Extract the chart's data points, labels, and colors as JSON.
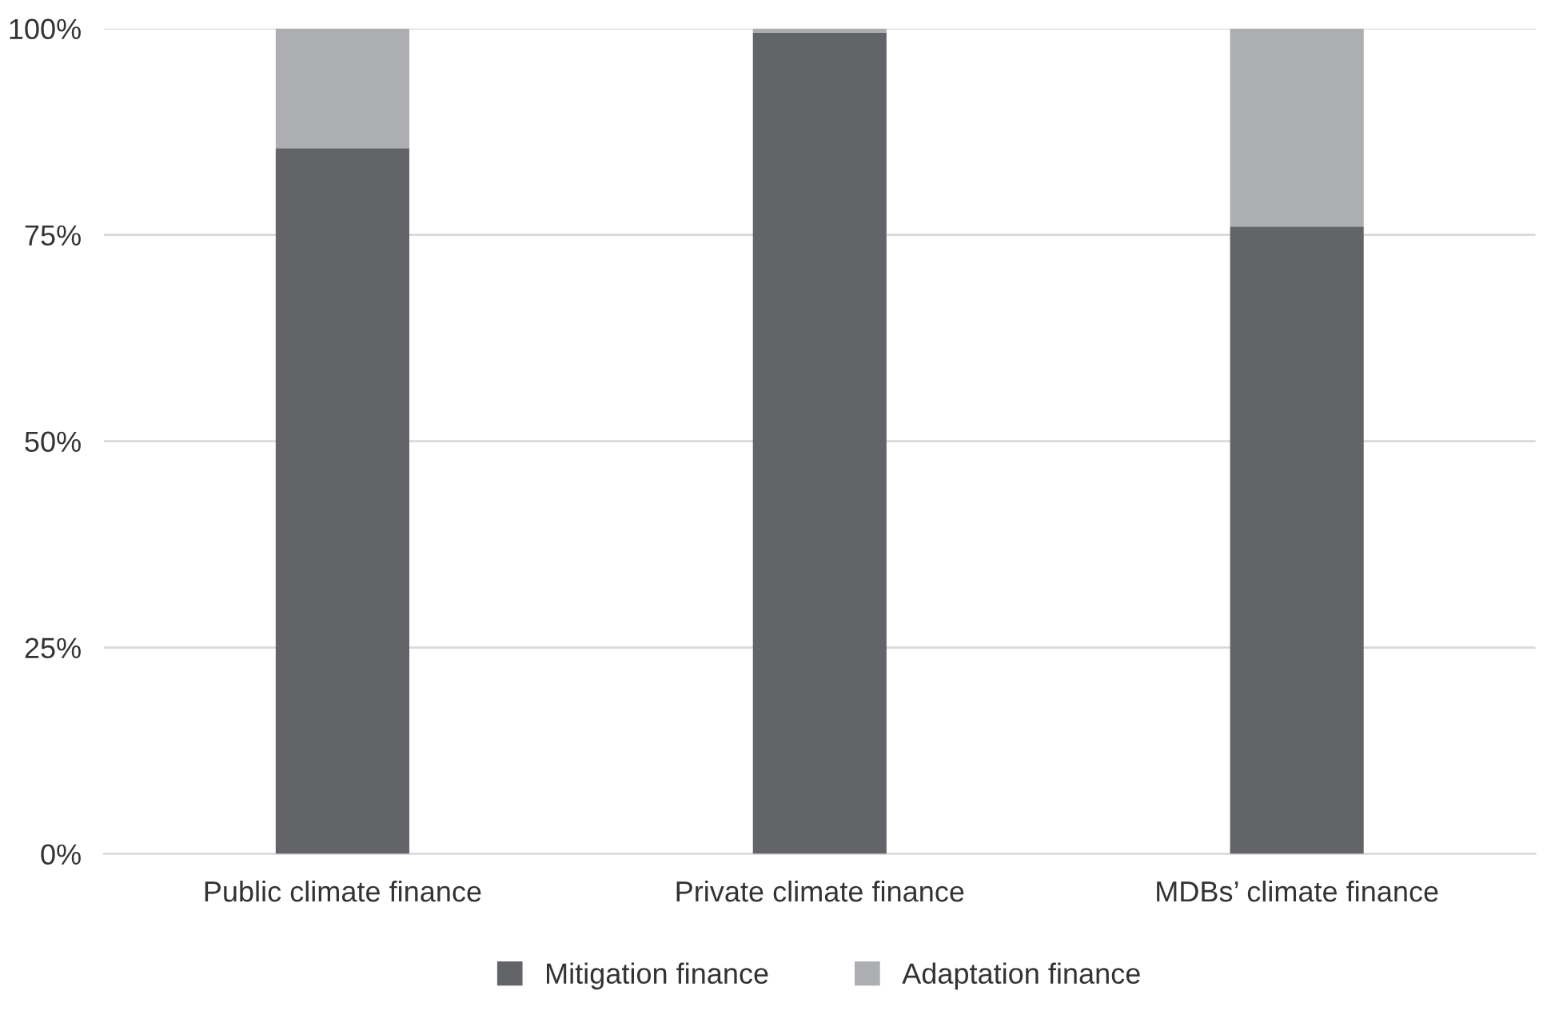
{
  "chart_data": {
    "type": "bar",
    "stacked": true,
    "categories": [
      "Public climate finance",
      "Private climate finance",
      "MDBs’ climate finance"
    ],
    "series": [
      {
        "name": "Mitigation finance",
        "color": "#636467",
        "values": [
          85.5,
          99.5,
          76
        ]
      },
      {
        "name": "Adaptation finance",
        "color": "#adaeb1",
        "values": [
          14.5,
          0.5,
          24
        ]
      }
    ],
    "ylim": [
      0,
      100
    ],
    "yticks": [
      {
        "value": 0,
        "label": "0%"
      },
      {
        "value": 25,
        "label": "25%"
      },
      {
        "value": 50,
        "label": "50%"
      },
      {
        "value": 75,
        "label": "75%"
      },
      {
        "value": 100,
        "label": "100%"
      }
    ],
    "grid": "y",
    "legend": "bottom"
  }
}
